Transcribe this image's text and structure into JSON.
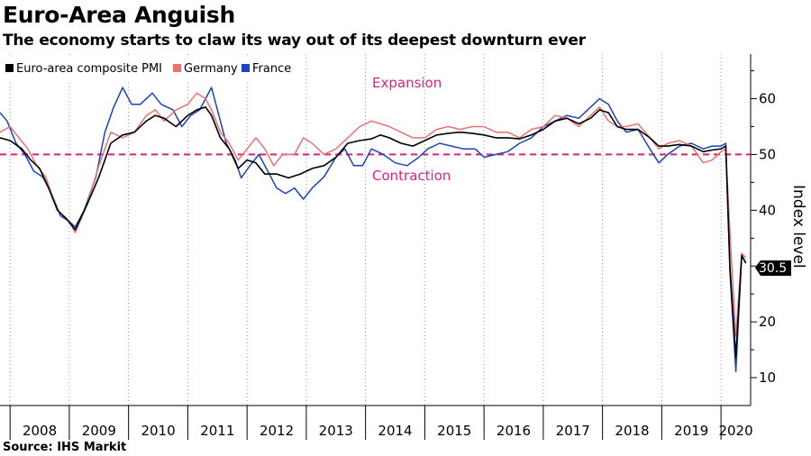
{
  "title": "Euro-Area Anguish",
  "subtitle": "The economy starts to claw its way out of its deepest downturn ever",
  "source": "Source: IHS Markit",
  "chart_data": {
    "type": "line",
    "x_unit": "year (decimal)",
    "x_range": [
      2007.83,
      2020.5
    ],
    "ylim": [
      5,
      68
    ],
    "yticks": [
      10,
      20,
      30,
      40,
      50,
      60
    ],
    "ylabel": "Index level",
    "xtick_labels": [
      "2008",
      "2009",
      "2010",
      "2011",
      "2012",
      "2013",
      "2014",
      "2015",
      "2016",
      "2017",
      "2018",
      "2019",
      "2020"
    ],
    "annotations": {
      "upper": "Expansion",
      "lower": "Contraction",
      "threshold": 50
    },
    "last_value_label": "30.5",
    "legend_position": "top-left",
    "grid": "vertical dotted at year starts",
    "series": [
      {
        "name": "Euro-area composite PMI",
        "color": "#000000",
        "points": [
          [
            2007.83,
            53
          ],
          [
            2008.0,
            52.5
          ],
          [
            2008.2,
            51
          ],
          [
            2008.35,
            49
          ],
          [
            2008.5,
            47.5
          ],
          [
            2008.65,
            44
          ],
          [
            2008.8,
            40
          ],
          [
            2008.95,
            38.5
          ],
          [
            2009.1,
            36.5
          ],
          [
            2009.3,
            41
          ],
          [
            2009.5,
            46
          ],
          [
            2009.7,
            52
          ],
          [
            2009.9,
            53.5
          ],
          [
            2010.1,
            54
          ],
          [
            2010.3,
            56
          ],
          [
            2010.45,
            57
          ],
          [
            2010.6,
            56.5
          ],
          [
            2010.8,
            55
          ],
          [
            2011.0,
            57
          ],
          [
            2011.15,
            58
          ],
          [
            2011.3,
            58.5
          ],
          [
            2011.4,
            57
          ],
          [
            2011.55,
            53
          ],
          [
            2011.7,
            51
          ],
          [
            2011.85,
            47.5
          ],
          [
            2012.0,
            49
          ],
          [
            2012.15,
            48.5
          ],
          [
            2012.3,
            46.5
          ],
          [
            2012.5,
            46.5
          ],
          [
            2012.7,
            45.8
          ],
          [
            2012.9,
            46.5
          ],
          [
            2013.1,
            47.5
          ],
          [
            2013.3,
            48
          ],
          [
            2013.5,
            49.5
          ],
          [
            2013.7,
            52
          ],
          [
            2013.9,
            52.5
          ],
          [
            2014.1,
            52.8
          ],
          [
            2014.25,
            53.5
          ],
          [
            2014.4,
            53
          ],
          [
            2014.6,
            52
          ],
          [
            2014.8,
            51.5
          ],
          [
            2015.0,
            52.5
          ],
          [
            2015.2,
            53.5
          ],
          [
            2015.4,
            53.8
          ],
          [
            2015.6,
            54
          ],
          [
            2015.8,
            53.8
          ],
          [
            2016.0,
            53.5
          ],
          [
            2016.2,
            53
          ],
          [
            2016.4,
            53
          ],
          [
            2016.6,
            52.8
          ],
          [
            2016.8,
            53.5
          ],
          [
            2017.0,
            54.5
          ],
          [
            2017.2,
            56
          ],
          [
            2017.4,
            56.5
          ],
          [
            2017.6,
            55.5
          ],
          [
            2017.8,
            56.5
          ],
          [
            2017.95,
            58
          ],
          [
            2018.1,
            57.5
          ],
          [
            2018.25,
            55
          ],
          [
            2018.4,
            54.5
          ],
          [
            2018.6,
            54.5
          ],
          [
            2018.8,
            53
          ],
          [
            2018.95,
            51.5
          ],
          [
            2019.1,
            51.5
          ],
          [
            2019.3,
            51.8
          ],
          [
            2019.5,
            51.5
          ],
          [
            2019.7,
            50.5
          ],
          [
            2019.85,
            50.8
          ],
          [
            2020.0,
            51
          ],
          [
            2020.08,
            51.5
          ],
          [
            2020.15,
            30
          ],
          [
            2020.25,
            13.6
          ],
          [
            2020.35,
            31.9
          ],
          [
            2020.42,
            30.5
          ]
        ]
      },
      {
        "name": "Germany",
        "color": "#e8736f",
        "points": [
          [
            2007.83,
            54
          ],
          [
            2008.0,
            55
          ],
          [
            2008.15,
            53
          ],
          [
            2008.3,
            51
          ],
          [
            2008.45,
            48
          ],
          [
            2008.6,
            46
          ],
          [
            2008.8,
            40
          ],
          [
            2009.0,
            38
          ],
          [
            2009.1,
            36
          ],
          [
            2009.3,
            41
          ],
          [
            2009.5,
            48
          ],
          [
            2009.7,
            54
          ],
          [
            2009.9,
            53
          ],
          [
            2010.1,
            54
          ],
          [
            2010.3,
            57
          ],
          [
            2010.45,
            58
          ],
          [
            2010.6,
            56
          ],
          [
            2010.8,
            58
          ],
          [
            2011.0,
            59
          ],
          [
            2011.15,
            61
          ],
          [
            2011.3,
            60
          ],
          [
            2011.4,
            58
          ],
          [
            2011.55,
            54
          ],
          [
            2011.7,
            52
          ],
          [
            2011.85,
            49
          ],
          [
            2012.0,
            51
          ],
          [
            2012.15,
            53
          ],
          [
            2012.3,
            51
          ],
          [
            2012.45,
            48
          ],
          [
            2012.6,
            50
          ],
          [
            2012.8,
            50
          ],
          [
            2012.95,
            53
          ],
          [
            2013.1,
            52
          ],
          [
            2013.3,
            50
          ],
          [
            2013.5,
            51
          ],
          [
            2013.7,
            53
          ],
          [
            2013.9,
            55
          ],
          [
            2014.1,
            56
          ],
          [
            2014.25,
            55.5
          ],
          [
            2014.4,
            55
          ],
          [
            2014.6,
            54
          ],
          [
            2014.8,
            53
          ],
          [
            2015.0,
            53
          ],
          [
            2015.2,
            54.5
          ],
          [
            2015.4,
            55
          ],
          [
            2015.6,
            54.5
          ],
          [
            2015.8,
            55
          ],
          [
            2016.0,
            55
          ],
          [
            2016.2,
            54
          ],
          [
            2016.4,
            54
          ],
          [
            2016.6,
            53
          ],
          [
            2016.8,
            54.5
          ],
          [
            2017.0,
            55
          ],
          [
            2017.2,
            57
          ],
          [
            2017.4,
            56.5
          ],
          [
            2017.6,
            55
          ],
          [
            2017.8,
            57
          ],
          [
            2017.95,
            58.5
          ],
          [
            2018.1,
            56
          ],
          [
            2018.25,
            55
          ],
          [
            2018.4,
            55
          ],
          [
            2018.6,
            55.5
          ],
          [
            2018.8,
            53
          ],
          [
            2018.95,
            51
          ],
          [
            2019.1,
            52
          ],
          [
            2019.3,
            52.5
          ],
          [
            2019.5,
            51.5
          ],
          [
            2019.7,
            48.5
          ],
          [
            2019.85,
            49
          ],
          [
            2020.0,
            50.5
          ],
          [
            2020.08,
            51
          ],
          [
            2020.15,
            36
          ],
          [
            2020.25,
            17.4
          ],
          [
            2020.35,
            32.3
          ],
          [
            2020.42,
            31.5
          ]
        ]
      },
      {
        "name": "France",
        "color": "#1a44b8",
        "points": [
          [
            2007.83,
            57.5
          ],
          [
            2007.95,
            56
          ],
          [
            2008.1,
            52
          ],
          [
            2008.25,
            50
          ],
          [
            2008.4,
            47
          ],
          [
            2008.55,
            46
          ],
          [
            2008.7,
            43
          ],
          [
            2008.85,
            39
          ],
          [
            2009.0,
            38
          ],
          [
            2009.1,
            37
          ],
          [
            2009.25,
            40
          ],
          [
            2009.45,
            46
          ],
          [
            2009.6,
            54
          ],
          [
            2009.75,
            58.5
          ],
          [
            2009.9,
            62
          ],
          [
            2010.05,
            59
          ],
          [
            2010.2,
            59
          ],
          [
            2010.4,
            61
          ],
          [
            2010.55,
            59
          ],
          [
            2010.75,
            58
          ],
          [
            2010.9,
            55
          ],
          [
            2011.05,
            57
          ],
          [
            2011.2,
            58
          ],
          [
            2011.3,
            60
          ],
          [
            2011.4,
            62
          ],
          [
            2011.5,
            58
          ],
          [
            2011.65,
            52
          ],
          [
            2011.8,
            49
          ],
          [
            2011.9,
            45.8
          ],
          [
            2012.05,
            48
          ],
          [
            2012.2,
            50
          ],
          [
            2012.35,
            47
          ],
          [
            2012.5,
            44
          ],
          [
            2012.65,
            43
          ],
          [
            2012.8,
            44
          ],
          [
            2012.95,
            42
          ],
          [
            2013.1,
            44
          ],
          [
            2013.3,
            46
          ],
          [
            2013.5,
            49.5
          ],
          [
            2013.65,
            51
          ],
          [
            2013.8,
            48
          ],
          [
            2013.95,
            48
          ],
          [
            2014.1,
            51
          ],
          [
            2014.3,
            50
          ],
          [
            2014.5,
            48.5
          ],
          [
            2014.7,
            48
          ],
          [
            2014.9,
            49.5
          ],
          [
            2015.05,
            51
          ],
          [
            2015.25,
            52
          ],
          [
            2015.45,
            51.5
          ],
          [
            2015.65,
            51
          ],
          [
            2015.85,
            51
          ],
          [
            2016.0,
            49.5
          ],
          [
            2016.2,
            50
          ],
          [
            2016.4,
            50.5
          ],
          [
            2016.6,
            52
          ],
          [
            2016.8,
            53
          ],
          [
            2017.0,
            55
          ],
          [
            2017.2,
            56
          ],
          [
            2017.4,
            57
          ],
          [
            2017.6,
            56.5
          ],
          [
            2017.8,
            58.5
          ],
          [
            2017.95,
            60
          ],
          [
            2018.1,
            59
          ],
          [
            2018.25,
            56
          ],
          [
            2018.4,
            54
          ],
          [
            2018.6,
            54.5
          ],
          [
            2018.8,
            51
          ],
          [
            2018.95,
            48.5
          ],
          [
            2019.1,
            50
          ],
          [
            2019.3,
            51.5
          ],
          [
            2019.5,
            52
          ],
          [
            2019.7,
            51
          ],
          [
            2019.85,
            51.5
          ],
          [
            2020.0,
            51.5
          ],
          [
            2020.08,
            52
          ],
          [
            2020.15,
            29
          ],
          [
            2020.25,
            11.1
          ],
          [
            2020.35,
            32
          ],
          [
            2020.42,
            30.5
          ]
        ]
      }
    ]
  }
}
